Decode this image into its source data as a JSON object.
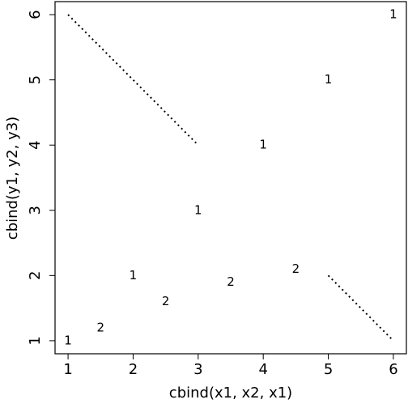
{
  "chart_data": {
    "type": "matplot",
    "xlabel": "cbind(x1, x2, x1)",
    "ylabel": "cbind(y1, y2, y3)",
    "xlim": [
      0.8,
      6.2
    ],
    "ylim": [
      0.8,
      6.2
    ],
    "xticks": [
      1,
      2,
      3,
      4,
      5,
      6
    ],
    "yticks": [
      1,
      2,
      3,
      4,
      5,
      6
    ],
    "series": [
      {
        "symbol": "1",
        "style": "points",
        "color": "#000000",
        "x": [
          1,
          2,
          3,
          4,
          5,
          6
        ],
        "values": [
          1,
          2,
          3,
          4,
          5,
          6
        ]
      },
      {
        "symbol": "2",
        "style": "points",
        "color": "#000000",
        "x": [
          1.5,
          2.5,
          3.5,
          4.5
        ],
        "values": [
          1.2,
          1.6,
          1.9,
          2.1
        ]
      },
      {
        "style": "dotted-line",
        "color": "#000000",
        "x": [
          1,
          2,
          3,
          4,
          5,
          6
        ],
        "values": [
          6,
          5,
          4,
          null,
          2,
          1
        ]
      }
    ]
  }
}
